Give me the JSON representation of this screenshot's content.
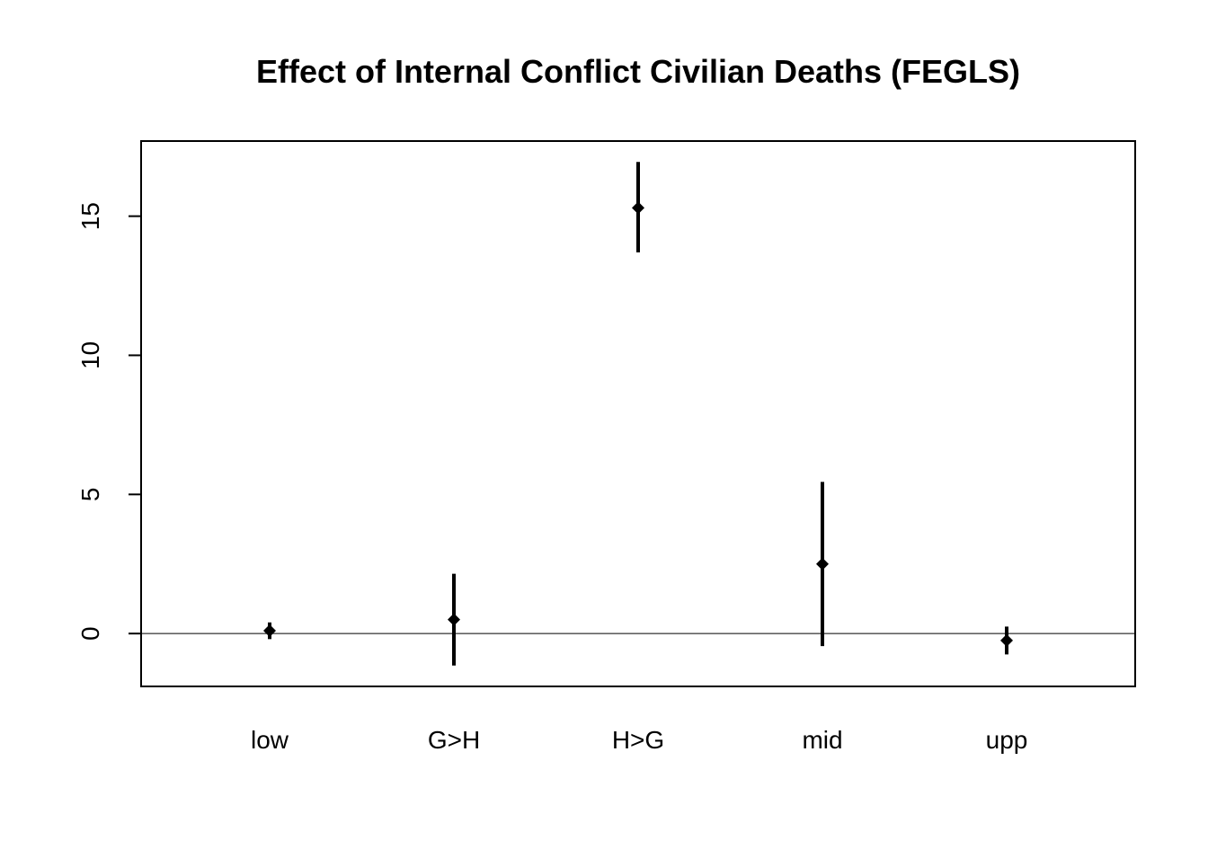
{
  "chart_data": {
    "type": "errorbar",
    "title": "Effect of Internal Conflict Civilian Deaths (FEGLS)",
    "xlabel": "",
    "ylabel": "",
    "categories": [
      "low",
      "G>H",
      "H>G",
      "mid",
      "upp"
    ],
    "estimates": [
      0.1,
      0.5,
      15.3,
      2.5,
      -0.25
    ],
    "lower": [
      -0.2,
      -1.15,
      13.7,
      -0.45,
      -0.75
    ],
    "upper": [
      0.4,
      2.15,
      16.95,
      5.45,
      0.25
    ],
    "ylim": [
      -1.9,
      17.7
    ],
    "yticks": [
      0,
      5,
      10,
      15
    ],
    "reference_line": 0,
    "grid": false,
    "legend": "none",
    "colors": {
      "marks": "#000000",
      "axes": "#000000",
      "background": "#ffffff"
    }
  }
}
